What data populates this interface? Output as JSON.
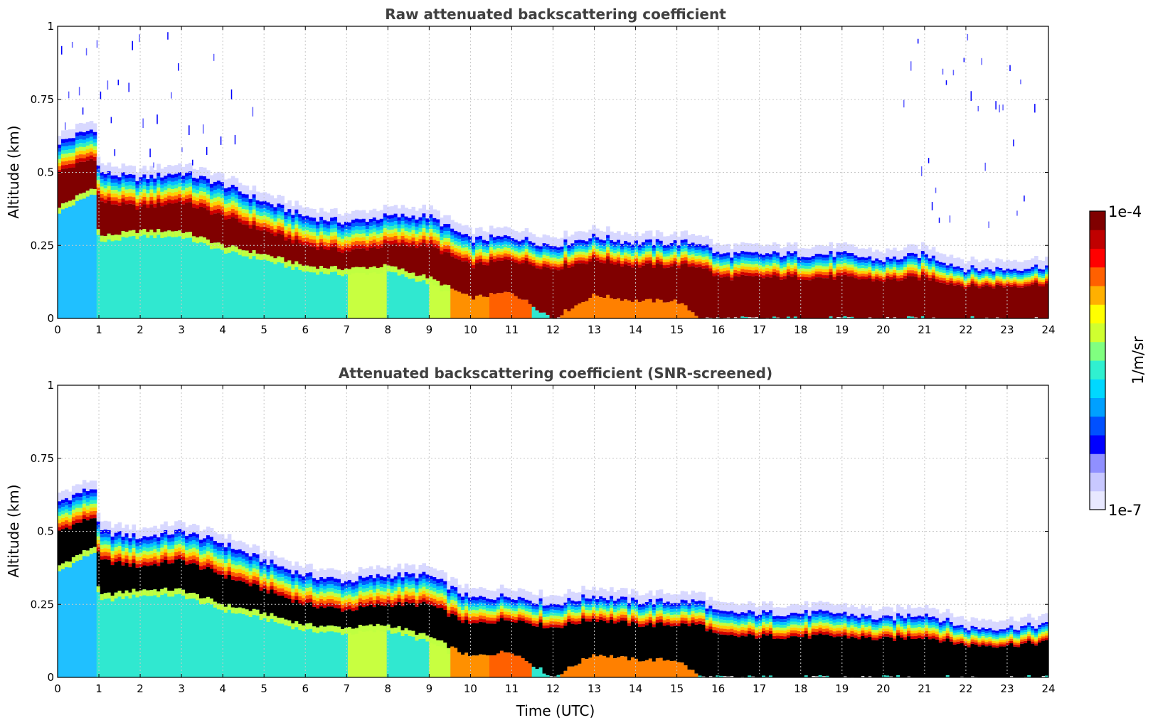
{
  "chart_data": [
    {
      "type": "heatmap",
      "title": "Raw attenuated backscattering coefficient",
      "xlabel": "",
      "ylabel": "Altitude (km)",
      "xlim": [
        0,
        24
      ],
      "ylim": [
        0,
        1
      ],
      "xticks": [
        "0",
        "1",
        "2",
        "3",
        "4",
        "5",
        "6",
        "7",
        "8",
        "9",
        "10",
        "11",
        "12",
        "13",
        "14",
        "15",
        "16",
        "17",
        "18",
        "19",
        "20",
        "21",
        "22",
        "23",
        "24"
      ],
      "yticks": [
        "0",
        "0.25",
        "0.5",
        "0.75",
        "1"
      ],
      "grid": true,
      "screened": false,
      "color_scale": "log",
      "layer_top_km": {
        "x": [
          0,
          0.5,
          0.9,
          1,
          2,
          3,
          4,
          5,
          6,
          7,
          8,
          9,
          10,
          11,
          12,
          13,
          14,
          15,
          15.6,
          16,
          17,
          18,
          19,
          20,
          21,
          22,
          23,
          24
        ],
        "y": [
          0.6,
          0.63,
          0.65,
          0.5,
          0.48,
          0.5,
          0.46,
          0.4,
          0.35,
          0.33,
          0.35,
          0.35,
          0.27,
          0.28,
          0.25,
          0.28,
          0.26,
          0.26,
          0.26,
          0.22,
          0.22,
          0.22,
          0.22,
          0.2,
          0.22,
          0.17,
          0.17,
          0.18
        ]
      },
      "dense_layer_top_km": {
        "x": [
          0,
          0.9,
          1,
          2,
          3,
          4,
          5,
          6,
          7,
          8,
          9,
          10,
          11,
          12,
          13,
          14,
          15,
          15.6,
          16,
          17,
          18,
          19,
          20,
          21,
          22,
          23,
          24
        ],
        "y": [
          0.5,
          0.55,
          0.4,
          0.38,
          0.4,
          0.35,
          0.3,
          0.25,
          0.23,
          0.25,
          0.25,
          0.18,
          0.2,
          0.17,
          0.2,
          0.18,
          0.18,
          0.18,
          0.14,
          0.14,
          0.14,
          0.14,
          0.13,
          0.14,
          0.11,
          0.11,
          0.12
        ]
      },
      "dense_layer_base_km": {
        "x": [
          0,
          0.9,
          1,
          2,
          3,
          4,
          5,
          6,
          7,
          8,
          9,
          10,
          11,
          12,
          13,
          14,
          15,
          15.6,
          16,
          17,
          18,
          19,
          20,
          21,
          22,
          23,
          24
        ],
        "y": [
          0.38,
          0.45,
          0.28,
          0.3,
          0.3,
          0.25,
          0.22,
          0.18,
          0.17,
          0.18,
          0.14,
          0.07,
          0.09,
          0.0,
          0.08,
          0.06,
          0.06,
          0.0,
          0.0,
          0.0,
          0.0,
          0.0,
          0.0,
          0.0,
          0.0,
          0.0,
          0.0
        ]
      }
    },
    {
      "type": "heatmap",
      "title": "Attenuated backscattering coefficient (SNR-screened)",
      "xlabel": "Time (UTC)",
      "ylabel": "Altitude (km)",
      "xlim": [
        0,
        24
      ],
      "ylim": [
        0,
        1
      ],
      "xticks": [
        "0",
        "1",
        "2",
        "3",
        "4",
        "5",
        "6",
        "7",
        "8",
        "9",
        "10",
        "11",
        "12",
        "13",
        "14",
        "15",
        "16",
        "17",
        "18",
        "19",
        "20",
        "21",
        "22",
        "23",
        "24"
      ],
      "yticks": [
        "0",
        "0.25",
        "0.5",
        "0.75",
        "1"
      ],
      "grid": true,
      "screened": true,
      "color_scale": "log",
      "layer_top_km": {
        "x": [
          0,
          0.5,
          0.9,
          1,
          2,
          3,
          4,
          5,
          6,
          7,
          8,
          9,
          10,
          11,
          12,
          13,
          14,
          15,
          15.6,
          16,
          17,
          18,
          19,
          20,
          21,
          22,
          23,
          24
        ],
        "y": [
          0.6,
          0.63,
          0.65,
          0.5,
          0.48,
          0.5,
          0.46,
          0.4,
          0.35,
          0.33,
          0.35,
          0.35,
          0.27,
          0.28,
          0.25,
          0.28,
          0.26,
          0.26,
          0.26,
          0.22,
          0.22,
          0.22,
          0.22,
          0.2,
          0.22,
          0.17,
          0.17,
          0.18
        ]
      },
      "dense_layer_top_km": {
        "x": [
          0,
          0.9,
          1,
          2,
          3,
          4,
          5,
          6,
          7,
          8,
          9,
          10,
          11,
          12,
          13,
          14,
          15,
          15.6,
          16,
          17,
          18,
          19,
          20,
          21,
          22,
          23,
          24
        ],
        "y": [
          0.5,
          0.55,
          0.4,
          0.38,
          0.4,
          0.35,
          0.3,
          0.25,
          0.23,
          0.25,
          0.25,
          0.18,
          0.2,
          0.17,
          0.2,
          0.18,
          0.18,
          0.18,
          0.14,
          0.14,
          0.14,
          0.14,
          0.13,
          0.14,
          0.11,
          0.11,
          0.12
        ]
      },
      "dense_layer_base_km": {
        "x": [
          0,
          0.9,
          1,
          2,
          3,
          4,
          5,
          6,
          7,
          8,
          9,
          10,
          11,
          12,
          13,
          14,
          15,
          15.6,
          16,
          17,
          18,
          19,
          20,
          21,
          22,
          23,
          24
        ],
        "y": [
          0.38,
          0.45,
          0.28,
          0.3,
          0.3,
          0.25,
          0.22,
          0.18,
          0.17,
          0.18,
          0.14,
          0.07,
          0.09,
          0.0,
          0.08,
          0.06,
          0.06,
          0.0,
          0.0,
          0.0,
          0.0,
          0.0,
          0.0,
          0.0,
          0.0,
          0.0,
          0.0
        ]
      }
    }
  ],
  "colorbar": {
    "label": "1/m/sr",
    "max_label": "1e-4",
    "min_label": "1e-7",
    "colors": [
      "#e8e8ff",
      "#c8c8ff",
      "#9090ff",
      "#0000ff",
      "#0050ff",
      "#00a0ff",
      "#00d8ff",
      "#30f0d0",
      "#80ff80",
      "#d0ff30",
      "#ffff00",
      "#ffb000",
      "#ff6000",
      "#ff0000",
      "#c00000",
      "#800000"
    ]
  }
}
